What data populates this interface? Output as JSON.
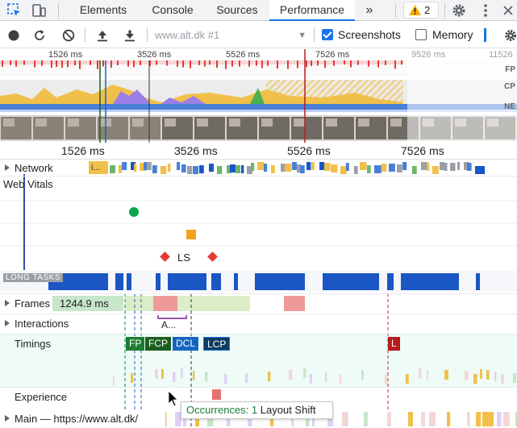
{
  "tabs": {
    "items": [
      {
        "label": "Elements",
        "active": false
      },
      {
        "label": "Console",
        "active": false
      },
      {
        "label": "Sources",
        "active": false
      },
      {
        "label": "Performance",
        "active": true
      }
    ],
    "more": "»",
    "warnings_count": "2"
  },
  "toolbar": {
    "profile": "www.alt.dk #1",
    "screenshots_label": "Screenshots",
    "screenshots_checked": true,
    "memory_label": "Memory",
    "memory_checked": false
  },
  "overview": {
    "ticks": [
      "1526 ms",
      "3526 ms",
      "5526 ms",
      "7526 ms",
      "9526 ms",
      "11526"
    ],
    "side_labels": [
      "FP",
      "CP",
      "NE"
    ]
  },
  "ruler": {
    "ticks": [
      "1526 ms",
      "3526 ms",
      "5526 ms",
      "7526 ms"
    ]
  },
  "tracks": {
    "network": "Network",
    "network_item": "i...",
    "web_vitals": "Web Vitals",
    "ls_label": "LS",
    "long_tasks": "LONG TASKS",
    "frames": "Frames",
    "frame_time": "1244.9 ms",
    "interactions": "Interactions",
    "interaction_item": "A...",
    "timings": "Timings",
    "experience": "Experience",
    "main": "Main — https://www.alt.dk/"
  },
  "timings": {
    "markers": [
      {
        "label": "FP",
        "color": "#1e7d32"
      },
      {
        "label": "FCP",
        "color": "#1b5e20"
      },
      {
        "label": "DCL",
        "color": "#1565c0"
      },
      {
        "label": "LCP",
        "color": "#0d3c61"
      },
      {
        "label": "L",
        "color": "#b71c1c"
      }
    ]
  },
  "tooltip": {
    "occurrences": "Occurrences: 1",
    "text": "Layout Shift"
  },
  "colors": {
    "accent": "#1a73e8",
    "scripting": "#f0c04a",
    "rendering": "#9b7fe6",
    "long_task": "#1a56c4",
    "frame_green": "#c8e6c9",
    "frame_red": "#ef9a9a"
  }
}
